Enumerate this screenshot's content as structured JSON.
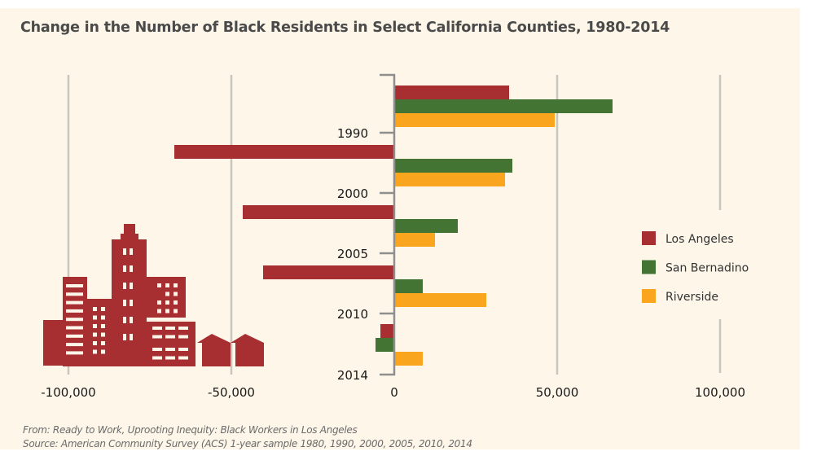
{
  "chart_data": {
    "type": "bar",
    "orientation": "horizontal",
    "title": "Change in the Number of Black Residents in Select California Counties, 1980-2014",
    "xlabel": "",
    "ylabel": "",
    "xlim": [
      -100000,
      100000
    ],
    "x_ticks": [
      -100000,
      -50000,
      0,
      50000,
      100000
    ],
    "x_tick_labels": [
      "-100,000",
      "-50,000",
      "0",
      "50,000",
      "100,000"
    ],
    "y_tick_labels": [
      "1990",
      "2000",
      "2005",
      "2010",
      "2014"
    ],
    "categories": [
      "1980-1990",
      "1990-2000",
      "2000-2005",
      "2005-2010",
      "2010-2014"
    ],
    "series": [
      {
        "name": "Los Angeles",
        "color": "#a72f32",
        "values": [
          35000,
          -67500,
          -46500,
          -40250,
          -4250
        ]
      },
      {
        "name": "San Bernadino",
        "color": "#447433",
        "values": [
          66750,
          36000,
          19250,
          8500,
          -5750
        ]
      },
      {
        "name": "Riverside",
        "color": "#f9a61e",
        "values": [
          49000,
          33750,
          12250,
          28000,
          8500
        ]
      }
    ],
    "grid": true,
    "legend_position": "right"
  },
  "notes": {
    "from": "From: Ready to Work, Uprooting Inequity: Black Workers in Los Angeles",
    "source": "Source: American Community Survey (ACS) 1-year sample 1980, 1990, 2000, 2005, 2010, 2014"
  },
  "colors": {
    "background": "#fdf6e9",
    "gridline": "#c9c6c0",
    "axis": "#8f8f8f",
    "illustration": "#a72f32"
  }
}
